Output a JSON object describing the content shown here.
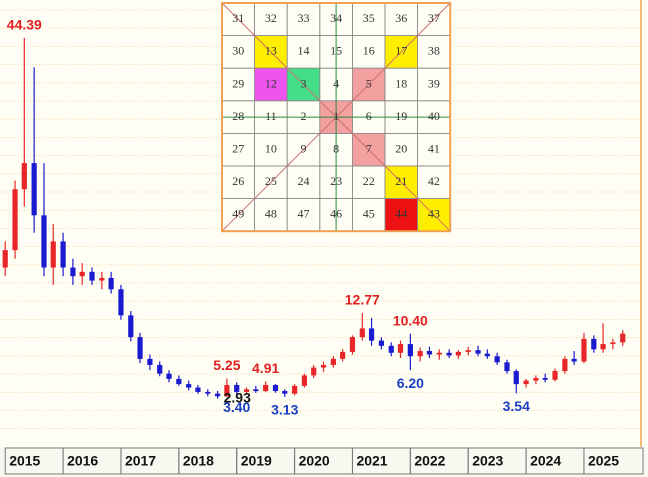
{
  "chart_data": {
    "type": "candlestick",
    "x": [
      2015.0,
      2015.17,
      2015.33,
      2015.5,
      2015.67,
      2015.83,
      2016.0,
      2016.17,
      2016.33,
      2016.5,
      2016.67,
      2016.83,
      2017.0,
      2017.17,
      2017.33,
      2017.5,
      2017.67,
      2017.83,
      2018.0,
      2018.17,
      2018.33,
      2018.5,
      2018.67,
      2018.83,
      2019.0,
      2019.17,
      2019.33,
      2019.5,
      2019.67,
      2019.83,
      2020.0,
      2020.17,
      2020.33,
      2020.5,
      2020.67,
      2020.83,
      2021.0,
      2021.17,
      2021.33,
      2021.5,
      2021.67,
      2021.83,
      2022.0,
      2022.17,
      2022.33,
      2022.5,
      2022.67,
      2022.83,
      2023.0,
      2023.17,
      2023.33,
      2023.5,
      2023.67,
      2023.83,
      2024.0,
      2024.17,
      2024.33,
      2024.5,
      2024.67,
      2024.83,
      2025.0,
      2025.17,
      2025.33,
      2025.5,
      2025.67
    ],
    "open": [
      18,
      20,
      27,
      30,
      24,
      18,
      21,
      18,
      17,
      17.5,
      16.5,
      16.8,
      15.5,
      12.5,
      10,
      7.5,
      6.8,
      5.8,
      5.2,
      4.6,
      4.2,
      3.7,
      3.5,
      3.2,
      4.5,
      3.7,
      4.0,
      3.8,
      4.5,
      3.8,
      3.5,
      4.4,
      5.6,
      6.5,
      6.8,
      7.5,
      8.3,
      10,
      11,
      9.6,
      9,
      8.2,
      9.2,
      7.8,
      8.4,
      8,
      8.2,
      7.9,
      8.3,
      8.5,
      8.1,
      7.8,
      7.1,
      6.1,
      4.6,
      5.0,
      5.3,
      5.1,
      6.1,
      7.5,
      7.2,
      9.8,
      8.6,
      9.2,
      9.4
    ],
    "high": [
      21,
      28,
      44.39,
      41,
      30,
      23,
      22,
      19,
      18.5,
      18,
      17.5,
      17.5,
      16,
      13,
      10.5,
      8,
      7.2,
      6.2,
      5.6,
      5,
      4.5,
      4,
      3.8,
      5.25,
      4.8,
      4.2,
      4.4,
      4.91,
      4.6,
      4.0,
      4.6,
      5.8,
      6.8,
      7.2,
      7.8,
      8.6,
      10.2,
      12.77,
      12.2,
      10,
      9.4,
      9.6,
      10.4,
      8.8,
      8.9,
      8.6,
      8.6,
      8.5,
      8.9,
      9,
      8.6,
      8.2,
      7.4,
      6.3,
      5.2,
      5.6,
      5.8,
      6.4,
      7.8,
      8.4,
      10.5,
      10.2,
      11.6,
      9.8,
      10.8
    ],
    "low": [
      17,
      19,
      25,
      22,
      17,
      16,
      17,
      16,
      16,
      16,
      15.5,
      15,
      12,
      9.5,
      7,
      6.2,
      5.5,
      4.8,
      4.4,
      3.9,
      3.5,
      3.2,
      2.93,
      3.1,
      3.4,
      3.5,
      3.6,
      3.7,
      3.6,
      3.13,
      3.3,
      4.2,
      5.3,
      6.0,
      6.5,
      7.2,
      8,
      9.6,
      9,
      8.6,
      7.8,
      7.6,
      6.2,
      7.2,
      7.6,
      7.4,
      7.6,
      7.5,
      7.9,
      7.8,
      7.5,
      6.8,
      5.8,
      3.54,
      4.2,
      4.6,
      4.8,
      4.9,
      5.8,
      6.8,
      7,
      8.2,
      8.2,
      8.6,
      9
    ],
    "close": [
      20,
      27,
      30,
      24,
      18,
      21,
      18,
      17,
      17.5,
      16.5,
      16.8,
      15.5,
      12.5,
      10,
      7.5,
      6.8,
      5.8,
      5.2,
      4.6,
      4.2,
      3.7,
      3.5,
      3.2,
      4.5,
      3.7,
      4.0,
      3.8,
      4.5,
      3.8,
      3.5,
      4.4,
      5.6,
      6.5,
      6.8,
      7.5,
      8.3,
      10,
      11,
      9.6,
      9,
      8.2,
      9.2,
      7.8,
      8.4,
      8,
      8.2,
      7.9,
      8.3,
      8.5,
      8.1,
      7.8,
      7.1,
      6.1,
      4.6,
      5.0,
      5.3,
      5.1,
      6.1,
      7.5,
      7.2,
      9.8,
      8.6,
      9.2,
      9.4,
      10.4
    ],
    "up_color": "#e8262a",
    "down_color": "#1a1ad0",
    "xlim": [
      2014.91,
      2026.02
    ],
    "ylim": [
      -2.4,
      48.75
    ],
    "xticks": [
      2015,
      2016,
      2017,
      2018,
      2019,
      2020,
      2021,
      2022,
      2023,
      2024,
      2025
    ],
    "grid": true,
    "annotations": [
      {
        "x": 2015.33,
        "y": 44.39,
        "label": "44.39",
        "position": "above",
        "color": "#e02020"
      },
      {
        "x": 2018.67,
        "y": 2.93,
        "label": "2.93",
        "position": "right",
        "color": "#111111"
      },
      {
        "x": 2018.83,
        "y": 5.25,
        "label": "5.25",
        "position": "above",
        "color": "#e02020"
      },
      {
        "x": 2019.0,
        "y": 3.4,
        "label": "3.40",
        "position": "below",
        "color": "#1a3fc0"
      },
      {
        "x": 2019.5,
        "y": 4.91,
        "label": "4.91",
        "position": "above",
        "color": "#e02020"
      },
      {
        "x": 2019.83,
        "y": 3.13,
        "label": "3.13",
        "position": "below",
        "color": "#1a3fc0"
      },
      {
        "x": 2021.17,
        "y": 12.77,
        "label": "12.77",
        "position": "above",
        "color": "#e02020"
      },
      {
        "x": 2022.0,
        "y": 10.4,
        "label": "10.40",
        "position": "above",
        "color": "#e02020"
      },
      {
        "x": 2022.0,
        "y": 6.2,
        "label": "6.20",
        "position": "below",
        "color": "#1a3fc0"
      },
      {
        "x": 2023.83,
        "y": 3.54,
        "label": "3.54",
        "position": "below",
        "color": "#1a3fc0"
      }
    ]
  },
  "gann_square": {
    "rows": [
      [
        31,
        32,
        33,
        34,
        35,
        36,
        37
      ],
      [
        30,
        13,
        14,
        15,
        16,
        17,
        38
      ],
      [
        29,
        12,
        3,
        4,
        5,
        18,
        39
      ],
      [
        28,
        11,
        2,
        1,
        6,
        19,
        40
      ],
      [
        27,
        10,
        9,
        8,
        7,
        20,
        41
      ],
      [
        26,
        25,
        24,
        23,
        22,
        21,
        42
      ],
      [
        49,
        48,
        47,
        46,
        45,
        44,
        43
      ]
    ],
    "highlights": [
      {
        "cell": 13,
        "color": "#ffee00"
      },
      {
        "cell": 17,
        "color": "#ffee00"
      },
      {
        "cell": 21,
        "color": "#ffee00"
      },
      {
        "cell": 43,
        "color": "#ffee00"
      },
      {
        "cell": 12,
        "color": "#ee55ee"
      },
      {
        "cell": 3,
        "color": "#44dd88"
      },
      {
        "cell": 5,
        "color": "#f2a0a0"
      },
      {
        "cell": 1,
        "color": "#f2a0a0"
      },
      {
        "cell": 7,
        "color": "#f2a0a0"
      },
      {
        "cell": 44,
        "color": "#ee1111"
      }
    ]
  }
}
